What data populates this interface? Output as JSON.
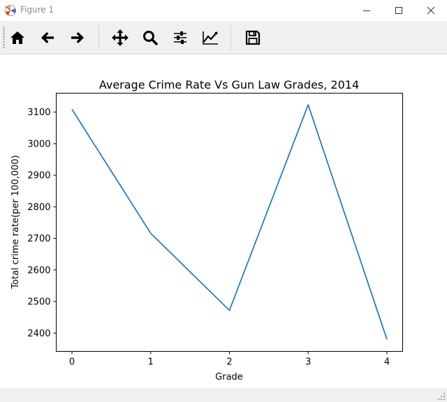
{
  "window": {
    "title": "Figure 1"
  },
  "toolbar": {
    "tools": [
      {
        "name": "home-icon"
      },
      {
        "name": "back-arrow-icon"
      },
      {
        "name": "forward-arrow-icon"
      },
      {
        "name": "pan-icon"
      },
      {
        "name": "zoom-icon"
      },
      {
        "name": "configure-subplots-icon"
      },
      {
        "name": "edit-axis-icon"
      },
      {
        "name": "save-icon"
      }
    ]
  },
  "chart_data": {
    "type": "line",
    "title": "Average Crime Rate Vs Gun Law Grades, 2014",
    "xlabel": "Grade",
    "ylabel": "Total crime rate(per 100,000)",
    "x": [
      0,
      1,
      2,
      3,
      4
    ],
    "series": [
      {
        "values": [
          3109,
          2716,
          2472,
          3123,
          2380
        ],
        "color": "#1f77b4"
      }
    ],
    "xticks": [
      0,
      1,
      2,
      3,
      4
    ],
    "yticks": [
      2400,
      2500,
      2600,
      2700,
      2800,
      2900,
      3000,
      3100
    ],
    "xlim": [
      -0.2,
      4.2
    ],
    "ylim": [
      2342,
      3160
    ],
    "grid": false
  }
}
